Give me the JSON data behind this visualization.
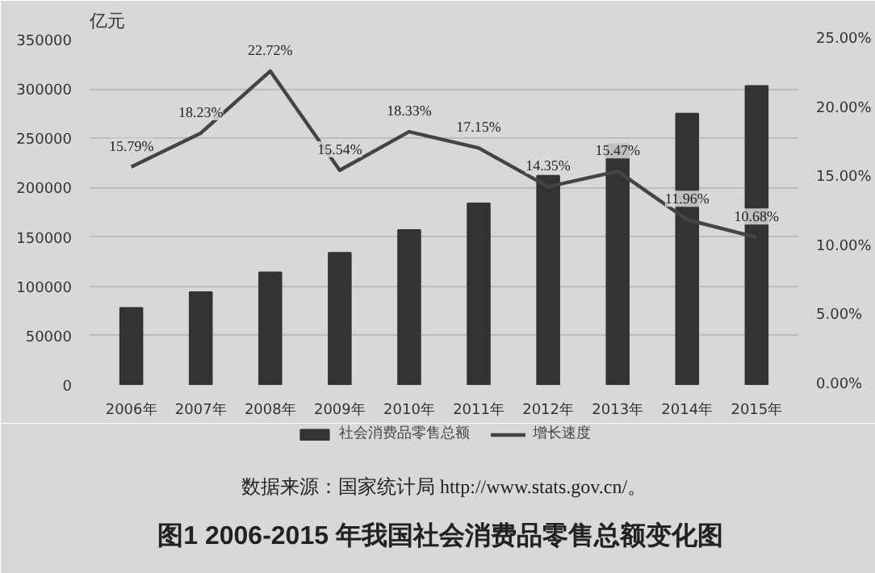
{
  "chart_data": {
    "type": "bar",
    "title": "图1  2006-2015 年我国社会消费品零售总额变化图",
    "ylabel": "亿元",
    "annotations": [
      "数据来源：国家统计局 http://www.stats.gov.cn/。"
    ],
    "categories": [
      "2006年",
      "2007年",
      "2008年",
      "2009年",
      "2010年",
      "2011年",
      "2012年",
      "2013年",
      "2014年",
      "2015年"
    ],
    "series": [
      {
        "name": "社会消费品零售总额",
        "type": "bar",
        "color": "#333333",
        "values": [
          78000,
          94000,
          114000,
          134000,
          157000,
          184000,
          212000,
          244000,
          275000,
          303000
        ]
      },
      {
        "name": "增长速度",
        "type": "line",
        "axis": "y2",
        "color": "#444444",
        "values": [
          15.79,
          18.23,
          22.72,
          15.54,
          18.33,
          17.15,
          14.35,
          15.47,
          11.96,
          10.68
        ],
        "value_labels": [
          "15.79%",
          "18.23%",
          "22.72%",
          "15.54%",
          "18.33%",
          "17.15%",
          "14.35%",
          "15.47%",
          "11.96%",
          "10.68%"
        ]
      }
    ],
    "ylim": [
      0,
      350000
    ],
    "yticks": [
      0,
      50000,
      100000,
      150000,
      200000,
      250000,
      300000,
      350000
    ],
    "y2lim": [
      0,
      25
    ],
    "y2ticks": [
      {
        "value": 0,
        "label": "0.00%"
      },
      {
        "value": 5,
        "label": "5.00%"
      },
      {
        "value": 10,
        "label": "10.00%"
      },
      {
        "value": 15,
        "label": "15.00%"
      },
      {
        "value": 20,
        "label": "20.00%"
      },
      {
        "value": 25,
        "label": "25.00%"
      }
    ],
    "grid": "y",
    "legend": "bottom"
  }
}
